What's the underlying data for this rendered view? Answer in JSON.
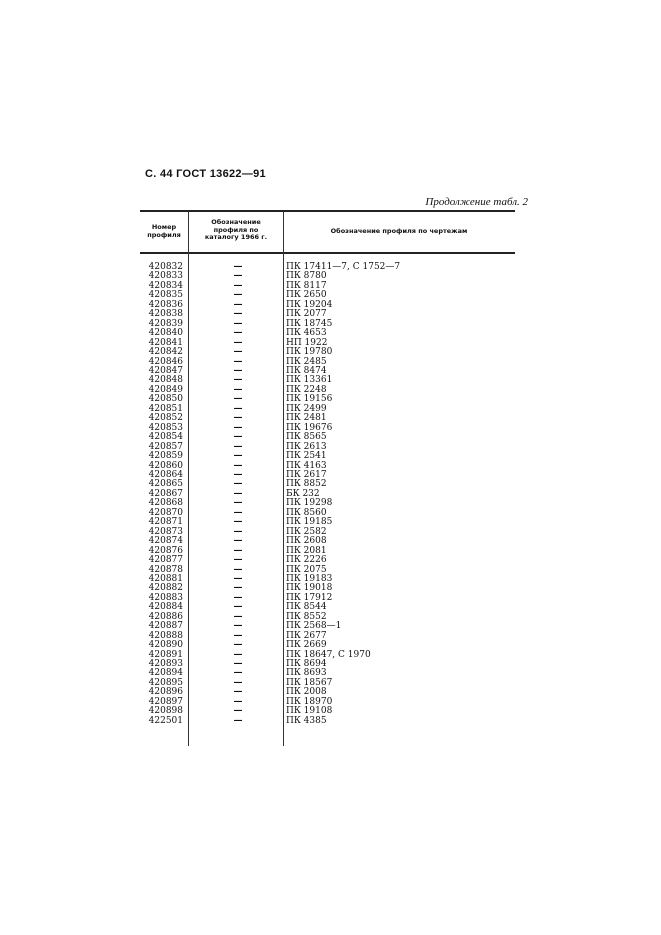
{
  "header": {
    "page_ref": "С. 44 ГОСТ 13622—91",
    "continuation": "Продолжение табл. 2"
  },
  "table": {
    "columns": [
      "Номер профиля",
      "Обозначение профиля по каталогу 1966 г.",
      "Обозначение профиля по чертежам"
    ],
    "rows": [
      [
        "420832",
        "—",
        "ПК 17411—7, С 1752—7"
      ],
      [
        "420833",
        "—",
        "ПК 8780"
      ],
      [
        "420834",
        "—",
        "ПК 8117"
      ],
      [
        "420835",
        "—",
        "ПК 2650"
      ],
      [
        "420836",
        "—",
        "ПК 19204"
      ],
      [
        "420838",
        "—",
        "ПК 2077"
      ],
      [
        "420839",
        "—",
        "ПК 18745"
      ],
      [
        "420840",
        "—",
        "ПК 4653"
      ],
      [
        "420841",
        "—",
        "НП 1922"
      ],
      [
        "420842",
        "—",
        "ПК 19780"
      ],
      [
        "420846",
        "—",
        "ПК 2485"
      ],
      [
        "420847",
        "—",
        "ПК 8474"
      ],
      [
        "420848",
        "—",
        "ПК 13361"
      ],
      [
        "420849",
        "—",
        "ПК 2248"
      ],
      [
        "420850",
        "—",
        "ПК 19156"
      ],
      [
        "420851",
        "—",
        "ПК 2499"
      ],
      [
        "420852",
        "—",
        "ПК 2481"
      ],
      [
        "420853",
        "—",
        "ПК 19676"
      ],
      [
        "420854",
        "—",
        "ПК 8565"
      ],
      [
        "420857",
        "—",
        "ПК 2613"
      ],
      [
        "420859",
        "—",
        "ПК 2541"
      ],
      [
        "420860",
        "—",
        "ПК 4163"
      ],
      [
        "420864",
        "—",
        "ПК 2617"
      ],
      [
        "420865",
        "—",
        "ПК 8852"
      ],
      [
        "420867",
        "—",
        "БК 232"
      ],
      [
        "420868",
        "—",
        "ПК 19298"
      ],
      [
        "420870",
        "—",
        "ПК 8560"
      ],
      [
        "420871",
        "—",
        "ПК 19185"
      ],
      [
        "420873",
        "—",
        "ПК 2582"
      ],
      [
        "420874",
        "—",
        "ПК 2608"
      ],
      [
        "420876",
        "—",
        "ПК 2081"
      ],
      [
        "420877",
        "—",
        "ПК 2226"
      ],
      [
        "420878",
        "—",
        "ПК 2075"
      ],
      [
        "420881",
        "—",
        "ПК 19183"
      ],
      [
        "420882",
        "—",
        "ПК 19018"
      ],
      [
        "420883",
        "—",
        "ПК 17912"
      ],
      [
        "420884",
        "—",
        "ПК 8544"
      ],
      [
        "420886",
        "—",
        "ПК 8552"
      ],
      [
        "420887",
        "—",
        "ПК 2568—1"
      ],
      [
        "420888",
        "—",
        "ПК 2677"
      ],
      [
        "420890",
        "—",
        "ПК 2669"
      ],
      [
        "420891",
        "—",
        "ПК 18647, С 1970"
      ],
      [
        "420893",
        "—",
        "ПК 8694"
      ],
      [
        "420894",
        "—",
        "ПК 8693"
      ],
      [
        "420895",
        "—",
        "ПК 18567"
      ],
      [
        "420896",
        "—",
        "ПК 2008"
      ],
      [
        "420897",
        "—",
        "ПК 18970"
      ],
      [
        "420898",
        "—",
        "ПК 19108"
      ],
      [
        "422501",
        "—",
        "ПК 4385"
      ]
    ]
  }
}
